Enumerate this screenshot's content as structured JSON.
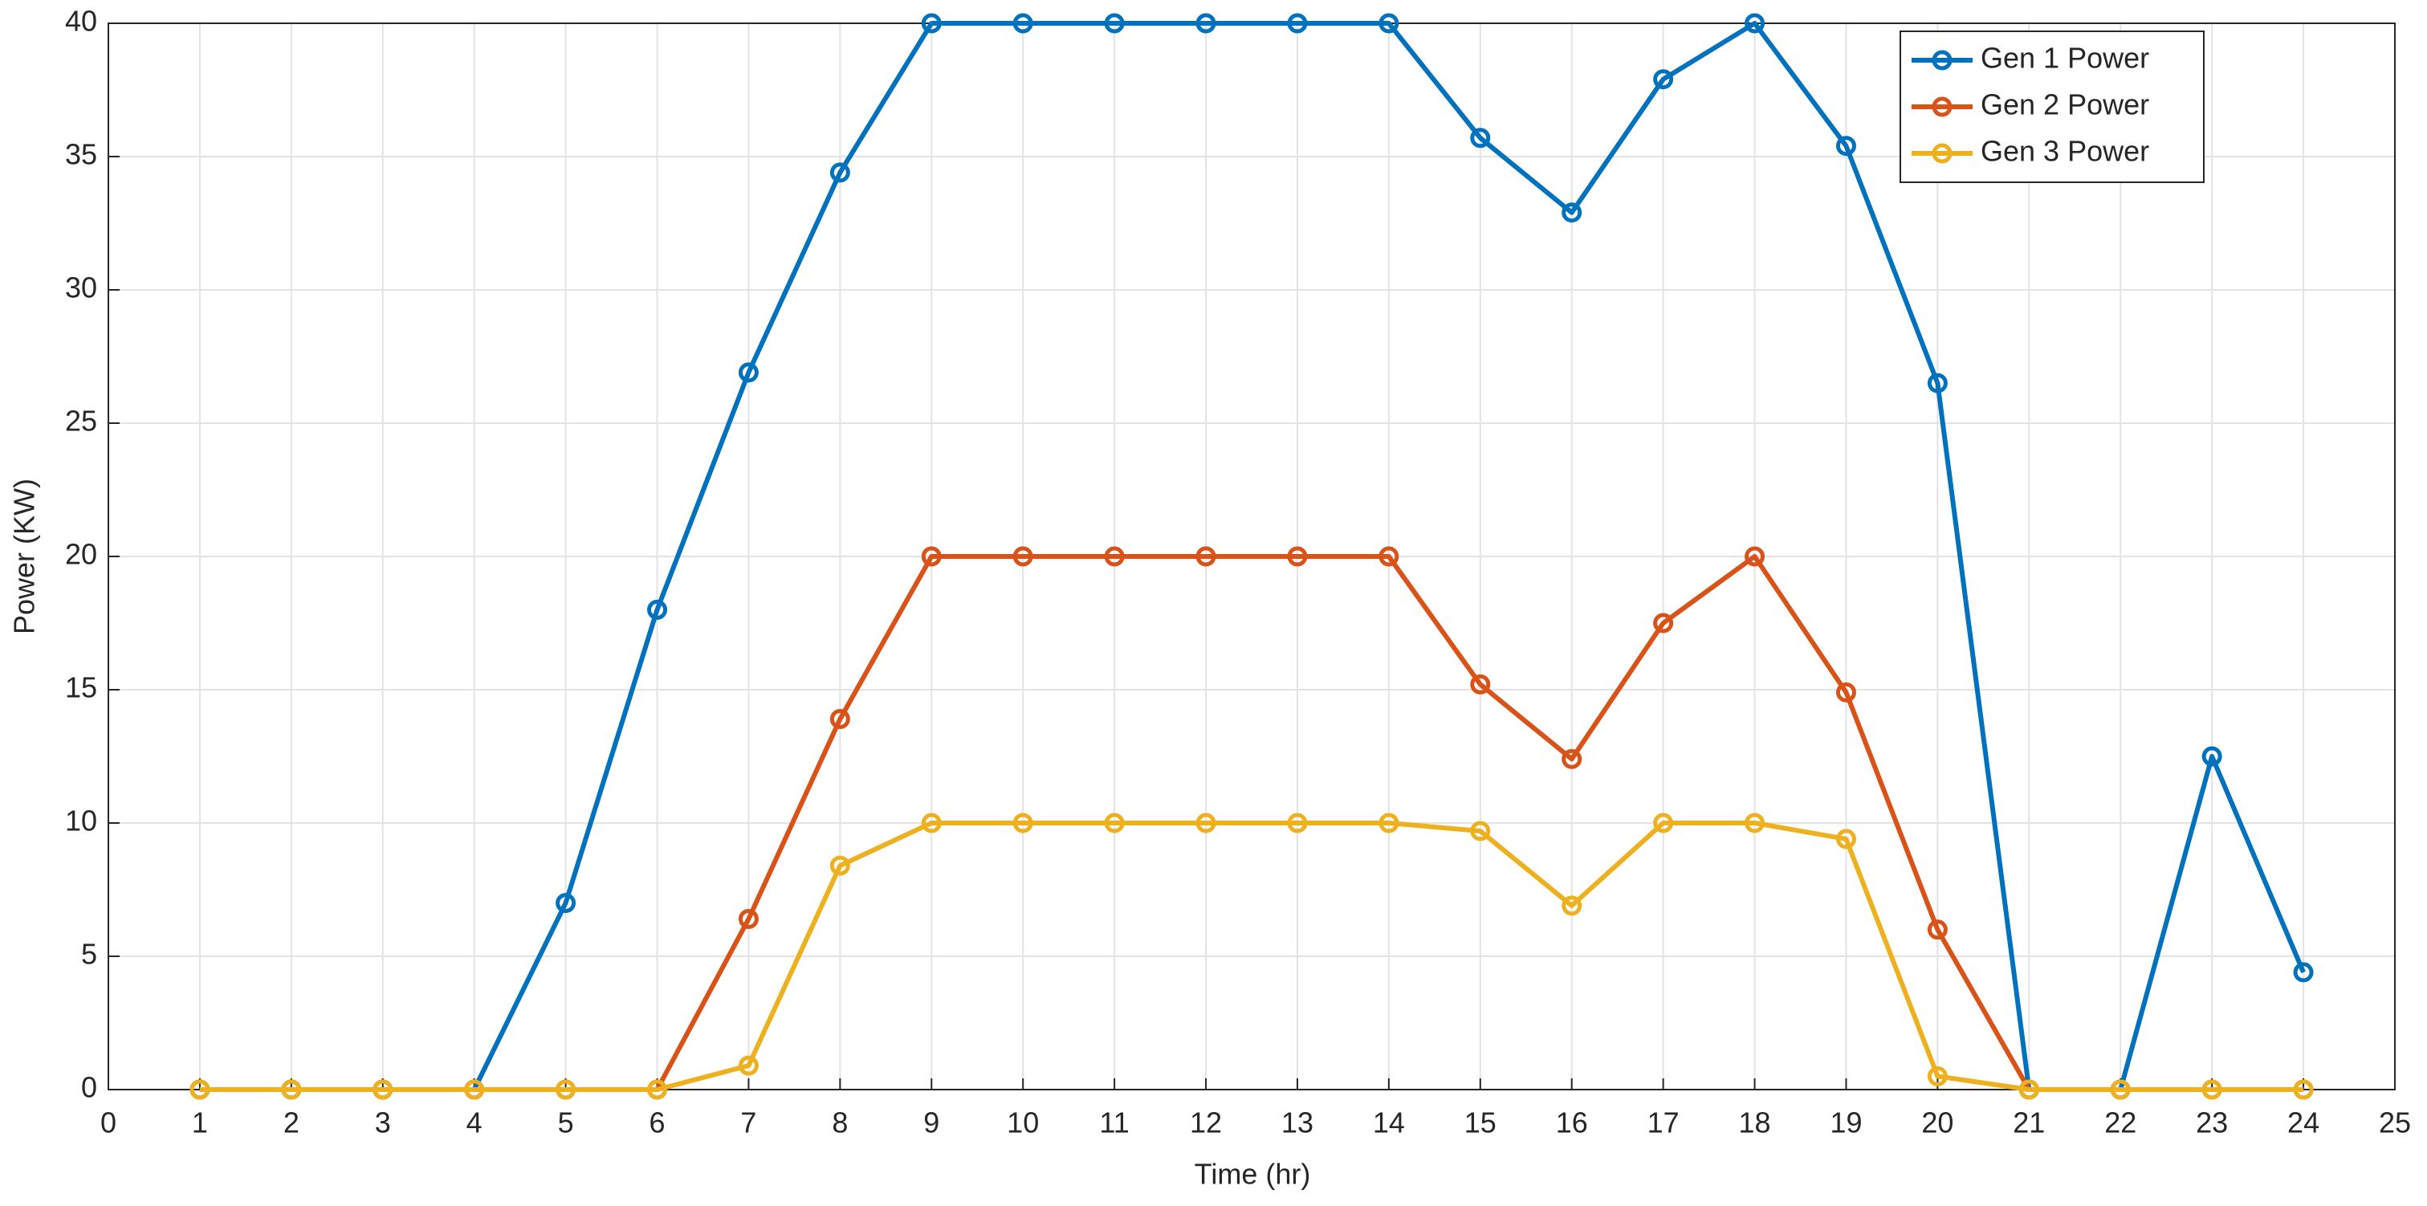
{
  "chart_data": {
    "type": "line",
    "x_label": "Time (hr)",
    "y_label": "Power (KW)",
    "x": [
      1,
      2,
      3,
      4,
      5,
      6,
      7,
      8,
      9,
      10,
      11,
      12,
      13,
      14,
      15,
      16,
      17,
      18,
      19,
      20,
      21,
      22,
      23,
      24
    ],
    "series": [
      {
        "name": "Gen 1 Power",
        "color": "#0072bd",
        "values": [
          0,
          0,
          0,
          0,
          7,
          18,
          26.9,
          34.4,
          40,
          40,
          40,
          40,
          40,
          40,
          35.7,
          32.9,
          37.9,
          40,
          35.4,
          26.5,
          0,
          0,
          12.5,
          4.4
        ]
      },
      {
        "name": "Gen 2 Power",
        "color": "#d95319",
        "values": [
          0,
          0,
          0,
          0,
          0,
          0,
          6.4,
          13.9,
          20,
          20,
          20,
          20,
          20,
          20,
          15.2,
          12.4,
          17.5,
          20,
          14.9,
          6,
          0,
          0,
          0,
          0
        ]
      },
      {
        "name": "Gen 3 Power",
        "color": "#edb120",
        "values": [
          0,
          0,
          0,
          0,
          0,
          0,
          0.9,
          8.4,
          10,
          10,
          10,
          10,
          10,
          10,
          9.7,
          6.9,
          10,
          10,
          9.4,
          0.5,
          0,
          0,
          0,
          0
        ]
      }
    ],
    "xlim": [
      0,
      25
    ],
    "xticks": [
      0,
      1,
      2,
      3,
      4,
      5,
      6,
      7,
      8,
      9,
      10,
      11,
      12,
      13,
      14,
      15,
      16,
      17,
      18,
      19,
      20,
      21,
      22,
      23,
      24,
      25
    ],
    "ylim": [
      0,
      40
    ],
    "yticks": [
      0,
      5,
      10,
      15,
      20,
      25,
      30,
      35,
      40
    ],
    "grid": true,
    "legend": "top-right",
    "marker": "circle"
  }
}
